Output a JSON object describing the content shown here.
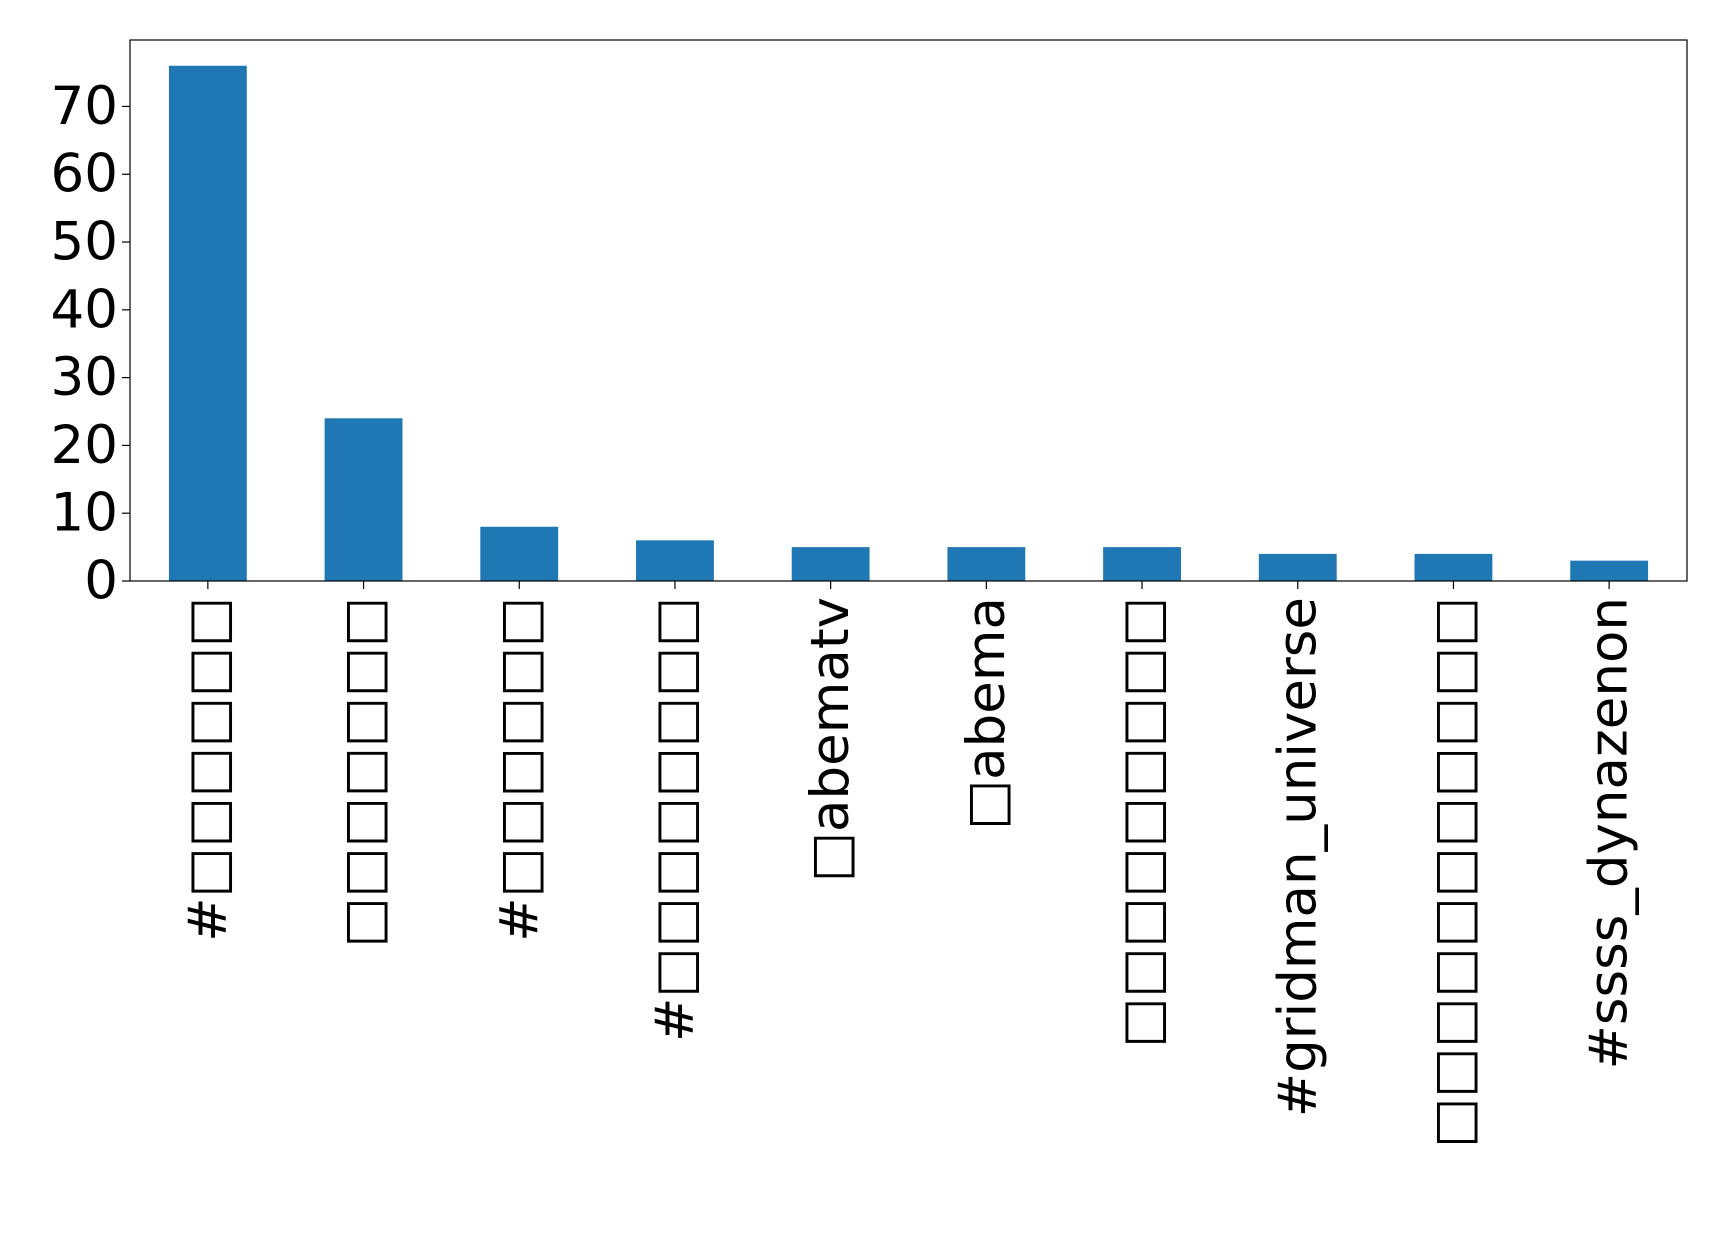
{
  "chart_data": {
    "type": "bar",
    "categories": [
      "#□□□□□□",
      "□□□□□□□",
      "#□□□□□□",
      "#□□□□□□□□",
      "□abematv",
      "□abema",
      "□□□□□□□□□",
      "#gridman_universe",
      "□□□□□□□□□□□",
      "#ssss_dynazenon"
    ],
    "values": [
      76,
      24,
      8,
      6,
      5,
      5,
      5,
      4,
      4,
      3
    ],
    "color": "#1f77b4",
    "ylim": [
      0,
      79.8
    ],
    "yticks": [
      0,
      10,
      20,
      30,
      40,
      50,
      60,
      70
    ],
    "grid": false
  }
}
